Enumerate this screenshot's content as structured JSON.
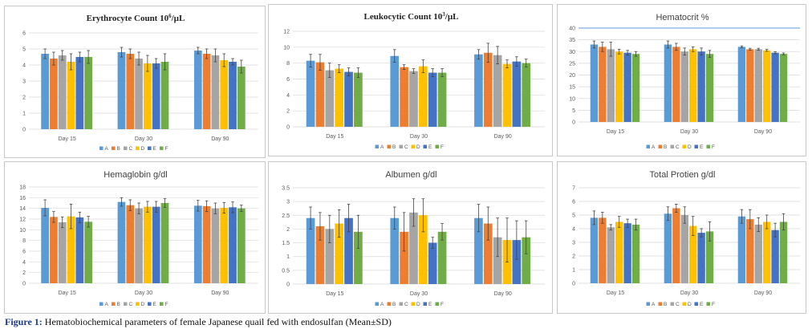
{
  "caption": {
    "figure_label": "Figure 1:",
    "text": " Hematobiochemical parameters of female Japanese quail fed with endosulfan (Mean±SD)"
  },
  "colors": {
    "A": "#5b9bd5",
    "B": "#ed7d31",
    "C": "#a5a5a5",
    "D": "#ffc000",
    "E": "#4472c4",
    "F": "#70ad47",
    "grid": "#d9d9d9",
    "err": "#444444"
  },
  "chart_data": [
    {
      "id": "erythrocyte",
      "type": "bar",
      "title": "Erythrocyte Count 10",
      "title_sup": "6",
      "title_suffix": "/µL",
      "title_style": "serif",
      "categories": [
        "Day 15",
        "Day 30",
        "Day 90"
      ],
      "ylim": [
        0,
        6
      ],
      "yticks": [
        0,
        1,
        2,
        3,
        4,
        5,
        6
      ],
      "series": [
        {
          "name": "A",
          "values": [
            4.7,
            4.8,
            4.9
          ],
          "err": [
            0.3,
            0.3,
            0.2
          ]
        },
        {
          "name": "B",
          "values": [
            4.4,
            4.7,
            4.7
          ],
          "err": [
            0.4,
            0.3,
            0.3
          ]
        },
        {
          "name": "C",
          "values": [
            4.6,
            4.4,
            4.6
          ],
          "err": [
            0.3,
            0.4,
            0.4
          ]
        },
        {
          "name": "D",
          "values": [
            4.2,
            4.1,
            4.3
          ],
          "err": [
            0.5,
            0.5,
            0.4
          ]
        },
        {
          "name": "E",
          "values": [
            4.5,
            4.1,
            4.2
          ],
          "err": [
            0.3,
            0.3,
            0.2
          ]
        },
        {
          "name": "F",
          "values": [
            4.5,
            4.2,
            3.9
          ],
          "err": [
            0.4,
            0.5,
            0.4
          ]
        }
      ]
    },
    {
      "id": "leukocytic",
      "type": "bar",
      "title": "Leukocytic Count 10",
      "title_sup": "3",
      "title_suffix": "/µL",
      "title_style": "serif",
      "categories": [
        "Day 15",
        "Day 30",
        "Day 90"
      ],
      "ylim": [
        0,
        12
      ],
      "yticks": [
        0,
        2,
        4,
        6,
        8,
        10,
        12
      ],
      "series": [
        {
          "name": "A",
          "values": [
            8.3,
            8.9,
            9.1
          ],
          "err": [
            0.8,
            0.8,
            0.6
          ]
        },
        {
          "name": "B",
          "values": [
            8.1,
            7.5,
            9.3
          ],
          "err": [
            1.0,
            0.3,
            1.2
          ]
        },
        {
          "name": "C",
          "values": [
            7.1,
            7.0,
            9.0
          ],
          "err": [
            0.9,
            0.3,
            1.1
          ]
        },
        {
          "name": "D",
          "values": [
            7.3,
            7.6,
            7.9
          ],
          "err": [
            0.5,
            0.8,
            0.5
          ]
        },
        {
          "name": "E",
          "values": [
            6.9,
            6.8,
            8.2
          ],
          "err": [
            0.5,
            0.5,
            0.6
          ]
        },
        {
          "name": "F",
          "values": [
            6.8,
            6.8,
            8.0
          ],
          "err": [
            0.6,
            0.5,
            0.5
          ]
        }
      ]
    },
    {
      "id": "hematocrit",
      "type": "bar",
      "title": "Hematocrit %",
      "title_style": "sans",
      "categories": [
        "Day 15",
        "Day 30",
        "Day 90"
      ],
      "ylim": [
        0,
        40
      ],
      "yticks": [
        0,
        5,
        10,
        15,
        20,
        25,
        30,
        35,
        40
      ],
      "series": [
        {
          "name": "A",
          "values": [
            33,
            33,
            32
          ],
          "err": [
            1.5,
            1.5,
            0.4
          ]
        },
        {
          "name": "B",
          "values": [
            32,
            32,
            31
          ],
          "err": [
            2.0,
            1.5,
            0.4
          ]
        },
        {
          "name": "C",
          "values": [
            31,
            30,
            31
          ],
          "err": [
            3.0,
            1.5,
            0.4
          ]
        },
        {
          "name": "D",
          "values": [
            30,
            31,
            30.5
          ],
          "err": [
            1.0,
            1.0,
            0.4
          ]
        },
        {
          "name": "E",
          "values": [
            29.5,
            30,
            29.5
          ],
          "err": [
            1.0,
            1.5,
            0.4
          ]
        },
        {
          "name": "F",
          "values": [
            29,
            29,
            29
          ],
          "err": [
            1.0,
            1.5,
            0.4
          ]
        }
      ]
    },
    {
      "id": "hemoglobin",
      "type": "bar",
      "title": "Hemaglobin g/dl",
      "title_style": "sans",
      "categories": [
        "Day 15",
        "Day 30",
        "Day 90"
      ],
      "ylim": [
        0,
        18
      ],
      "yticks": [
        0,
        2,
        4,
        6,
        8,
        10,
        12,
        14,
        16,
        18
      ],
      "series": [
        {
          "name": "A",
          "values": [
            14.1,
            15.2,
            14.5
          ],
          "err": [
            1.5,
            0.8,
            1.0
          ]
        },
        {
          "name": "B",
          "values": [
            12.4,
            14.6,
            14.4
          ],
          "err": [
            1.0,
            1.0,
            1.0
          ]
        },
        {
          "name": "C",
          "values": [
            11.4,
            14.0,
            14.0
          ],
          "err": [
            1.0,
            1.0,
            1.0
          ]
        },
        {
          "name": "D",
          "values": [
            12.5,
            14.3,
            14.1
          ],
          "err": [
            2.3,
            1.0,
            1.0
          ]
        },
        {
          "name": "E",
          "values": [
            12.3,
            14.3,
            14.2
          ],
          "err": [
            1.0,
            1.0,
            1.0
          ]
        },
        {
          "name": "F",
          "values": [
            11.5,
            15.0,
            14.0
          ],
          "err": [
            1.0,
            0.8,
            0.6
          ]
        }
      ]
    },
    {
      "id": "albumen",
      "type": "bar",
      "title": "Albumen g/dl",
      "title_style": "sans",
      "categories": [
        "Day 15",
        "Day 30",
        "Day 90"
      ],
      "ylim": [
        0,
        3.5
      ],
      "yticks": [
        0,
        0.5,
        1,
        1.5,
        2,
        2.5,
        3,
        3.5
      ],
      "series": [
        {
          "name": "A",
          "values": [
            2.4,
            2.4,
            2.4
          ],
          "err": [
            0.4,
            0.4,
            0.5
          ]
        },
        {
          "name": "B",
          "values": [
            2.1,
            1.9,
            2.2
          ],
          "err": [
            0.5,
            0.7,
            0.6
          ]
        },
        {
          "name": "C",
          "values": [
            2.0,
            2.6,
            1.7
          ],
          "err": [
            0.5,
            0.5,
            0.7
          ]
        },
        {
          "name": "D",
          "values": [
            2.2,
            2.5,
            1.6
          ],
          "err": [
            0.5,
            0.6,
            0.8
          ]
        },
        {
          "name": "E",
          "values": [
            2.4,
            1.5,
            1.6
          ],
          "err": [
            0.5,
            0.2,
            0.7
          ]
        },
        {
          "name": "F",
          "values": [
            1.9,
            1.9,
            1.7
          ],
          "err": [
            0.6,
            0.3,
            0.6
          ]
        }
      ]
    },
    {
      "id": "total-protein",
      "type": "bar",
      "title": "Total Protien g/dl",
      "title_style": "sans",
      "categories": [
        "Day 15",
        "Day 30",
        "Day 90"
      ],
      "ylim": [
        0,
        7
      ],
      "yticks": [
        0,
        1,
        2,
        3,
        4,
        5,
        6,
        7
      ],
      "series": [
        {
          "name": "A",
          "values": [
            4.8,
            5.1,
            4.9
          ],
          "err": [
            0.5,
            0.5,
            0.5
          ]
        },
        {
          "name": "B",
          "values": [
            4.8,
            5.5,
            4.7
          ],
          "err": [
            0.4,
            0.3,
            0.7
          ]
        },
        {
          "name": "C",
          "values": [
            4.1,
            5.0,
            4.3
          ],
          "err": [
            0.2,
            0.6,
            0.5
          ]
        },
        {
          "name": "D",
          "values": [
            4.5,
            4.2,
            4.5
          ],
          "err": [
            0.4,
            0.7,
            0.5
          ]
        },
        {
          "name": "E",
          "values": [
            4.4,
            3.7,
            3.9
          ],
          "err": [
            0.3,
            0.3,
            0.5
          ]
        },
        {
          "name": "F",
          "values": [
            4.3,
            3.8,
            4.5
          ],
          "err": [
            0.4,
            0.7,
            0.6
          ]
        }
      ]
    }
  ]
}
